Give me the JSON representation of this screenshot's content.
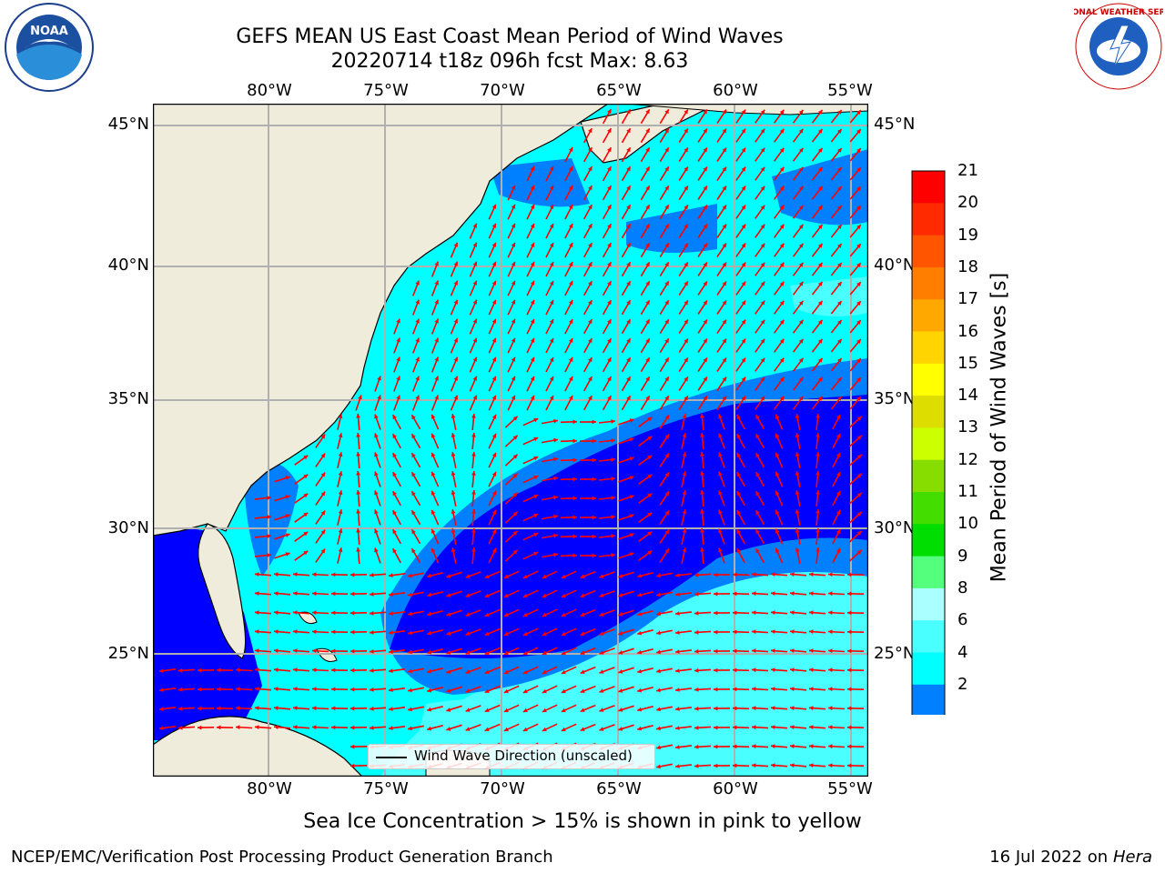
{
  "header": {
    "title_line1": "GEFS MEAN US East Coast Mean Period of Wind Waves",
    "title_line2": "20220714 t18z 096h fcst   Max: 8.63"
  },
  "logos": {
    "left": "NOAA",
    "right": "NATIONAL WEATHER SERVICE"
  },
  "map": {
    "lon_ticks": [
      "80°W",
      "75°W",
      "70°W",
      "65°W",
      "60°W",
      "55°W"
    ],
    "lat_ticks": [
      "45°N",
      "40°N",
      "35°N",
      "30°N",
      "25°N"
    ],
    "legend_label": "Wind Wave Direction (unscaled)",
    "arrow_color": "#ff0000",
    "land_color": "#efecdc",
    "ocean_colors": {
      "2-4": "#0000ff",
      "4-6": "#0080ff",
      "6-7": "#00ffff",
      "7-8": "#49ffff",
      "8-9": "#aaffff"
    }
  },
  "colorbar": {
    "label": "Mean Period of Wind Waves [s]",
    "ticks": [
      "21",
      "20",
      "19",
      "18",
      "17",
      "16",
      "15",
      "14",
      "13",
      "12",
      "11",
      "10",
      "9",
      "8",
      "6",
      "4",
      "2"
    ],
    "colors": [
      "#0000ff",
      "#0080ff",
      "#00ffff",
      "#49ffff",
      "#aaffff",
      "#54ff7e",
      "#00dd00",
      "#44dd00",
      "#88dd00",
      "#ccff00",
      "#dddd00",
      "#ffff00",
      "#ffd400",
      "#ffa800",
      "#ff7e00",
      "#ff5400",
      "#ff2a00",
      "#ff0000"
    ]
  },
  "footer": {
    "note": "Sea Ice Concentration > 15% is shown in pink to yellow",
    "left": "NCEP/EMC/Verification Post Processing Product Generation Branch",
    "right_prefix": "16 Jul 2022 on ",
    "right_machine": "Hera"
  }
}
